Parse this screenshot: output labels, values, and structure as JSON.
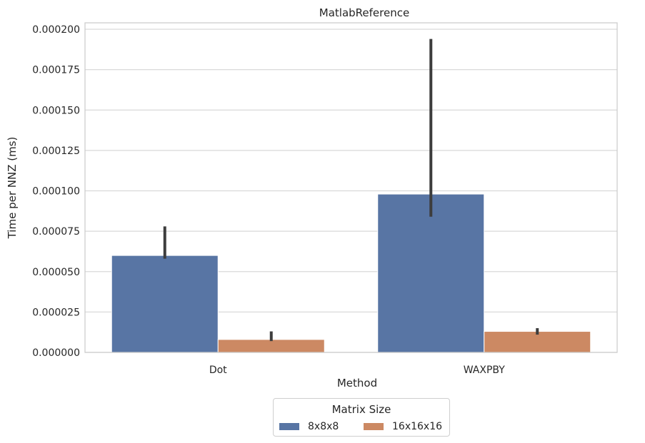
{
  "chart_data": {
    "type": "bar",
    "title": "MatlabReference",
    "xlabel": "Method",
    "ylabel": "Time per NNZ (ms)",
    "categories": [
      "Dot",
      "WAXPBY"
    ],
    "ylim": [
      0,
      0.000204
    ],
    "yticks": [
      "0.000000",
      "0.000025",
      "0.000050",
      "0.000075",
      "0.000100",
      "0.000125",
      "0.000150",
      "0.000175",
      "0.000200"
    ],
    "ytick_values": [
      0,
      2.5e-05,
      5e-05,
      7.5e-05,
      0.0001,
      0.000125,
      0.00015,
      0.000175,
      0.0002
    ],
    "grid": true,
    "legend": {
      "title": "Matrix Size",
      "placement": "below"
    },
    "series": [
      {
        "name": "8x8x8",
        "color": "#5875a4",
        "values": [
          6e-05,
          9.8e-05
        ],
        "err_low": [
          5.8e-05,
          8.4e-05
        ],
        "err_high": [
          7.8e-05,
          0.000194
        ]
      },
      {
        "name": "16x16x16",
        "color": "#cc8963",
        "values": [
          8e-06,
          1.3e-05
        ],
        "err_low": [
          7e-06,
          1.1e-05
        ],
        "err_high": [
          1.3e-05,
          1.5e-05
        ]
      }
    ]
  }
}
